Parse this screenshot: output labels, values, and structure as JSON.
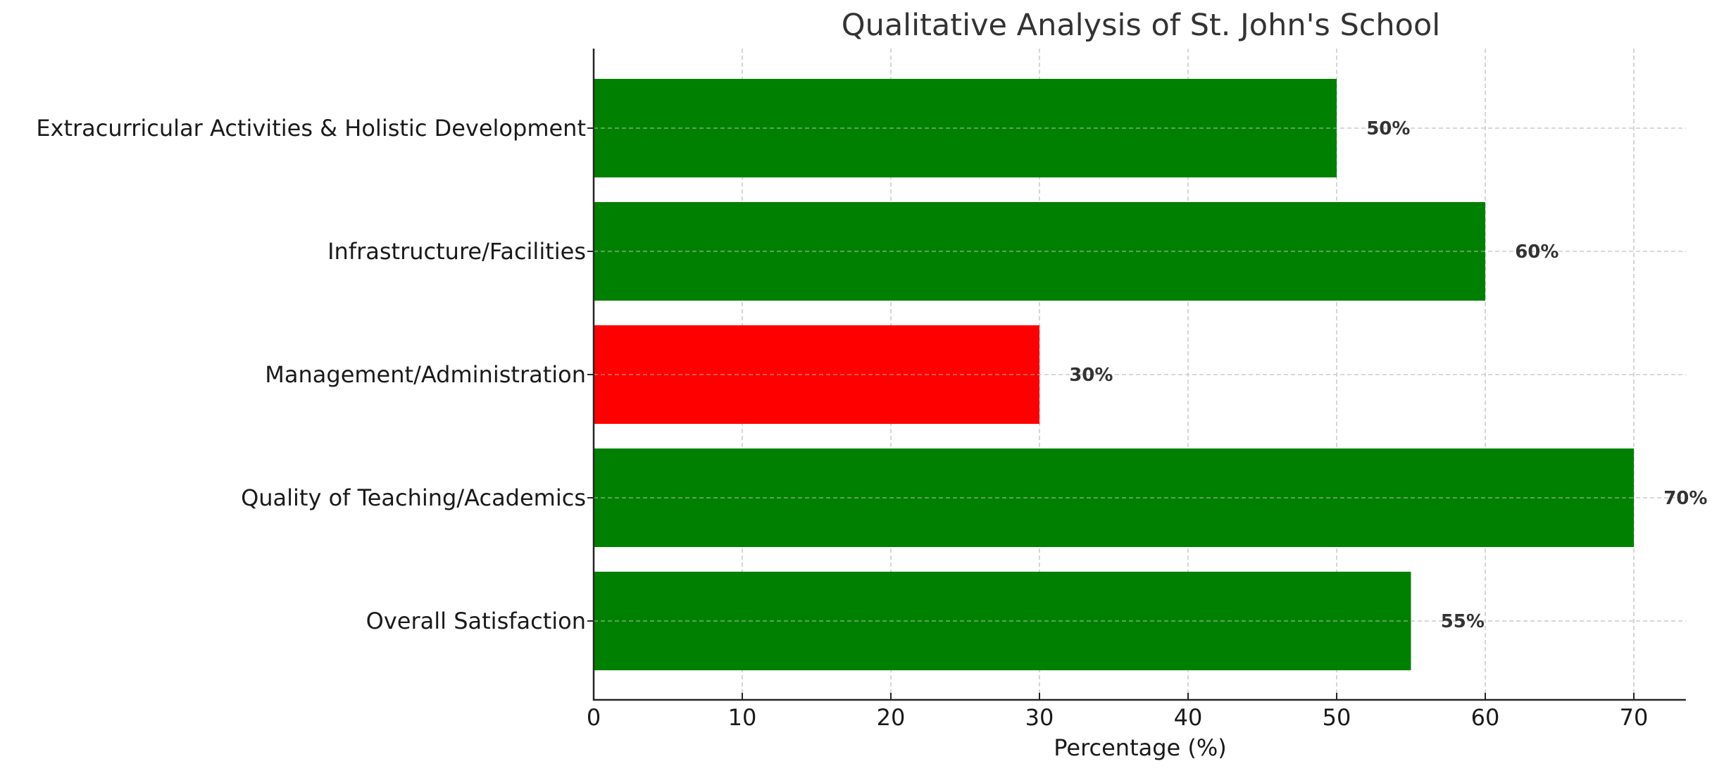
{
  "chart_data": {
    "type": "bar",
    "orientation": "horizontal",
    "title": "Qualitative Analysis of St. John's School",
    "xlabel": "Percentage (%)",
    "ylabel": "",
    "categories": [
      "Overall Satisfaction",
      "Quality of Teaching/Academics",
      "Management/Administration",
      "Infrastructure/Facilities",
      "Extracurricular Activities & Holistic Development"
    ],
    "values": [
      55,
      70,
      30,
      60,
      50
    ],
    "value_labels": [
      "55%",
      "70%",
      "30%",
      "60%",
      "50%"
    ],
    "bar_colors": [
      "#008000",
      "#008000",
      "#ff0000",
      "#008000",
      "#008000"
    ],
    "xlim": [
      0,
      73.5
    ],
    "xticks": [
      0,
      10,
      20,
      30,
      40,
      50,
      60,
      70
    ],
    "xtick_labels": [
      "0",
      "10",
      "20",
      "30",
      "40",
      "50",
      "60",
      "70"
    ],
    "grid": true,
    "grid_style": "dashed",
    "legend": null
  },
  "colors": {
    "positive": "#008000",
    "negative": "#ff0000",
    "text": "#333333",
    "axis": "#262626",
    "grid": "#cccccc"
  }
}
